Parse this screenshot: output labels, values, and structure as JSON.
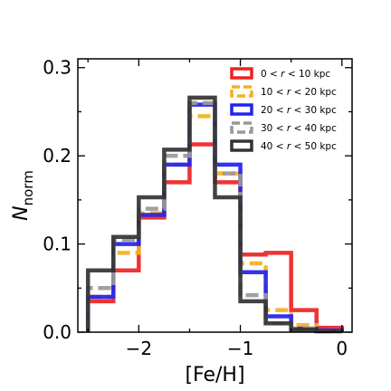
{
  "chart_data": {
    "type": "histogram-step",
    "xlabel": "[Fe/H]",
    "ylabel_main": "N",
    "ylabel_sub": "norm",
    "xlim": [
      -2.6,
      0.1
    ],
    "ylim": [
      0.0,
      0.31
    ],
    "xticks": [
      -2,
      -1,
      0
    ],
    "xtick_labels": [
      "−2",
      "−1",
      "0"
    ],
    "yticks": [
      0.0,
      0.1,
      0.2,
      0.3
    ],
    "ytick_labels": [
      "0.0",
      "0.1",
      "0.2",
      "0.3"
    ],
    "bin_edges": [
      -2.5,
      -2.25,
      -2.0,
      -1.75,
      -1.5,
      -1.25,
      -1.0,
      -0.75,
      -0.5,
      -0.25,
      0.0
    ],
    "legend_position": "top-right",
    "series": [
      {
        "name": "0 < r < 10 kpc",
        "color": "#ee2222",
        "dash": "solid",
        "values": [
          0.035,
          0.07,
          0.13,
          0.17,
          0.213,
          0.17,
          0.088,
          0.09,
          0.025,
          0.005
        ]
      },
      {
        "name": "10 < r < 20 kpc",
        "color": "#f5b020",
        "dash": "dashed",
        "values": [
          0.04,
          0.09,
          0.135,
          0.19,
          0.245,
          0.18,
          0.078,
          0.025,
          0.008,
          0.002
        ]
      },
      {
        "name": "20 < r < 30 kpc",
        "color": "#2222ee",
        "dash": "solid",
        "values": [
          0.04,
          0.1,
          0.133,
          0.19,
          0.258,
          0.19,
          0.068,
          0.018,
          0.004,
          0.002
        ]
      },
      {
        "name": "30 < r < 40 kpc",
        "color": "#999999",
        "dash": "dashed",
        "values": [
          0.05,
          0.105,
          0.14,
          0.2,
          0.26,
          0.18,
          0.042,
          0.01,
          0.004,
          0.001
        ]
      },
      {
        "name": "40 < r < 50 kpc",
        "color": "#333333",
        "dash": "solid",
        "values": [
          0.07,
          0.108,
          0.153,
          0.207,
          0.266,
          0.153,
          0.035,
          0.01,
          0.003,
          0.001
        ]
      }
    ],
    "legend": [
      {
        "prefix": "0",
        "suffix": "10 kpc"
      },
      {
        "prefix": "10",
        "suffix": "20 kpc"
      },
      {
        "prefix": "20",
        "suffix": "30 kpc"
      },
      {
        "prefix": "30",
        "suffix": "40 kpc"
      },
      {
        "prefix": "40",
        "suffix": "50 kpc"
      }
    ]
  }
}
